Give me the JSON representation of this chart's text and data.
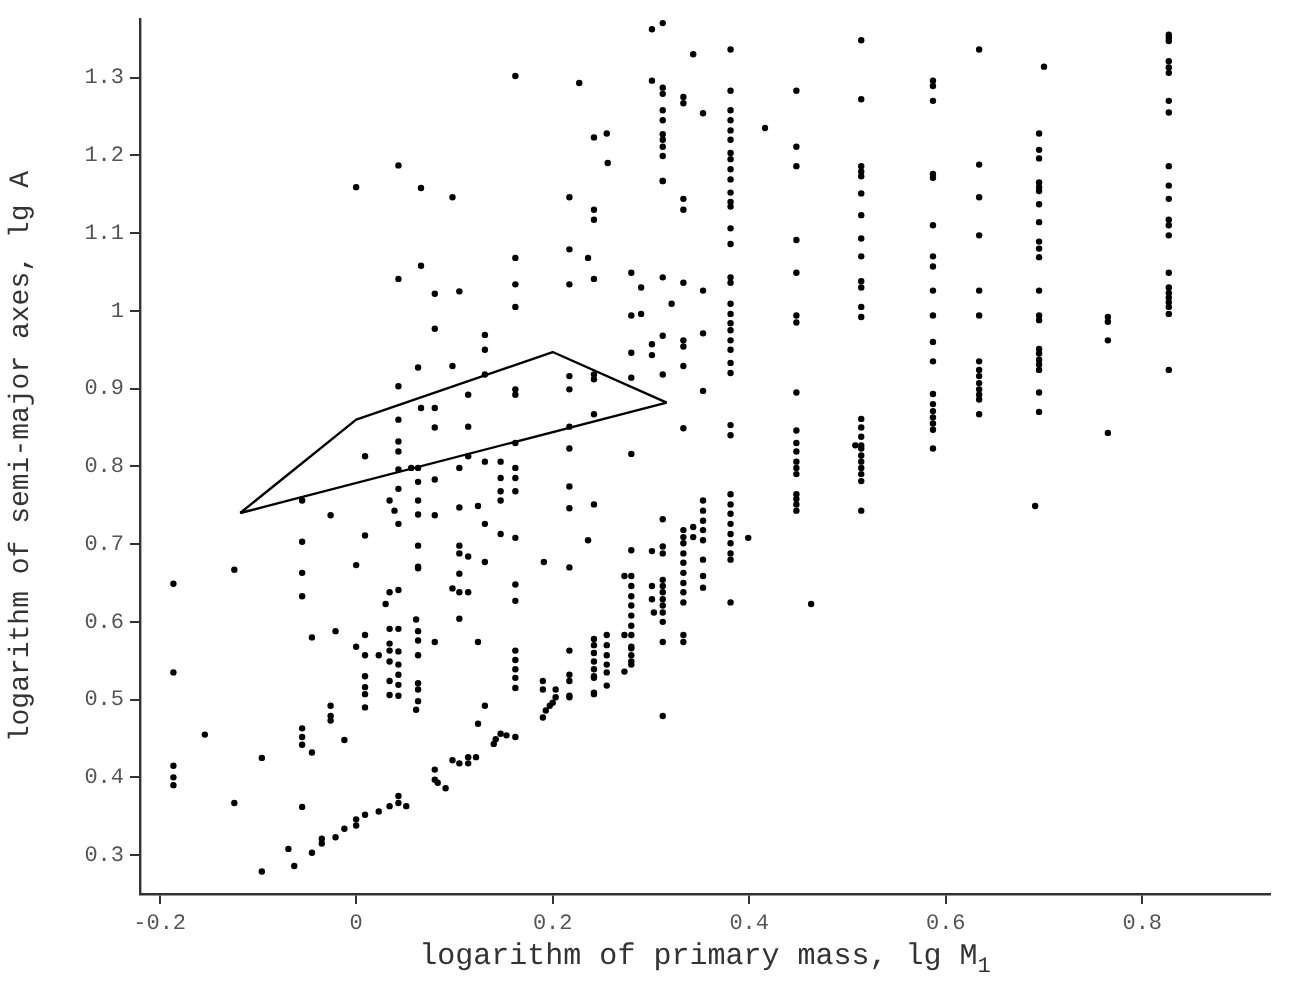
{
  "chart_data": {
    "type": "scatter",
    "xlabel": "logarithm of primary mass, lg M$_{1}$",
    "ylabel": "logarithm of semi-major axes, lg A",
    "xlim": [
      -0.22,
      0.93
    ],
    "ylim": [
      0.25,
      1.375
    ],
    "xticks": [
      -0.2,
      0,
      0.2,
      0.4,
      0.6,
      0.8
    ],
    "yticks": [
      0.3,
      0.4,
      0.5,
      0.6,
      0.7,
      0.8,
      0.9,
      1,
      1.1,
      1.2,
      1.3
    ],
    "grid": false,
    "legend": false,
    "marker": "circle",
    "series": [
      {
        "color": "#000000",
        "x": [
          -0.186,
          -0.186,
          -0.186,
          -0.186,
          -0.186,
          -0.154,
          -0.124,
          -0.124,
          -0.096,
          -0.096,
          -0.069,
          -0.063,
          -0.055,
          -0.055,
          -0.055,
          -0.055,
          -0.055,
          -0.055,
          -0.055,
          -0.055,
          -0.045,
          -0.045,
          -0.045,
          -0.035,
          -0.035,
          -0.026,
          -0.026,
          -0.026,
          -0.026,
          -0.021,
          -0.021,
          -0.012,
          -0.012,
          0,
          0,
          0,
          0,
          0,
          0.009,
          0.009,
          0.009,
          0.009,
          0.009,
          0.009,
          0.009,
          0.009,
          0.009,
          0.023,
          0.023,
          0.03,
          0.034,
          0.034,
          0.034,
          0.034,
          0.034,
          0.034,
          0.034,
          0.034,
          0.034,
          0.039,
          0.043,
          0.043,
          0.043,
          0.043,
          0.043,
          0.043,
          0.043,
          0.043,
          0.043,
          0.043,
          0.043,
          0.043,
          0.043,
          0.043,
          0.043,
          0.043,
          0.043,
          0.043,
          0.051,
          0.056,
          0.061,
          0.061,
          0.063,
          0.066,
          0.066,
          0.063,
          0.063,
          0.063,
          0.063,
          0.063,
          0.063,
          0.063,
          0.063,
          0.063,
          0.063,
          0.063,
          0.063,
          0.063,
          0.066,
          0.08,
          0.08,
          0.08,
          0.08,
          0.08,
          0.08,
          0.08,
          0.08,
          0.08,
          0.083,
          0.091,
          0.098,
          0.098,
          0.098,
          0.098,
          0.105,
          0.105,
          0.105,
          0.105,
          0.105,
          0.105,
          0.105,
          0.105,
          0.105,
          0.114,
          0.114,
          0.114,
          0.114,
          0.114,
          0.114,
          0.114,
          0.122,
          0.124,
          0.124,
          0.124,
          0.131,
          0.131,
          0.131,
          0.131,
          0.131,
          0.131,
          0.131,
          0.14,
          0.142,
          0.147,
          0.153,
          0.162,
          0.147,
          0.147,
          0.147,
          0.147,
          0.147,
          0.162,
          0.162,
          0.162,
          0.162,
          0.162,
          0.162,
          0.162,
          0.162,
          0.162,
          0.162,
          0.162,
          0.162,
          0.162,
          0.162,
          0.162,
          0.162,
          0.162,
          0.162,
          0.191,
          0.19,
          0.19,
          0.19,
          0.193,
          0.197,
          0.2,
          0.203,
          0.203,
          0.217,
          0.217,
          0.217,
          0.217,
          0.217,
          0.217,
          0.217,
          0.217,
          0.217,
          0.217,
          0.217,
          0.217,
          0.217,
          0.217,
          0.217,
          0.227,
          0.242,
          0.242,
          0.242,
          0.242,
          0.242,
          0.242,
          0.242,
          0.242,
          0.242,
          0.242,
          0.242,
          0.242,
          0.242,
          0.242,
          0.242,
          0.242,
          0.242,
          0.236,
          0.236,
          0.255,
          0.255,
          0.255,
          0.255,
          0.255,
          0.255,
          0.255,
          0.256,
          0.28,
          0.28,
          0.28,
          0.28,
          0.28,
          0.28,
          0.28,
          0.28,
          0.28,
          0.28,
          0.28,
          0.28,
          0.28,
          0.28,
          0.28,
          0.28,
          0.28,
          0.28,
          0.273,
          0.273,
          0.273,
          0.29,
          0.29,
          0.301,
          0.301,
          0.301,
          0.301,
          0.301,
          0.303,
          0.301,
          0.301,
          0.312,
          0.312,
          0.312,
          0.312,
          0.312,
          0.312,
          0.312,
          0.312,
          0.312,
          0.312,
          0.312,
          0.321,
          0.312,
          0.312,
          0.312,
          0.312,
          0.312,
          0.312,
          0.312,
          0.312,
          0.312,
          0.312,
          0.312,
          0.312,
          0.312,
          0.312,
          0.312,
          0.333,
          0.333,
          0.333,
          0.333,
          0.333,
          0.333,
          0.333,
          0.333,
          0.333,
          0.333,
          0.333,
          0.333,
          0.333,
          0.333,
          0.333,
          0.333,
          0.333,
          0.333,
          0.333,
          0.333,
          0.343,
          0.343,
          0.343,
          0.353,
          0.353,
          0.353,
          0.353,
          0.353,
          0.353,
          0.353,
          0.353,
          0.353,
          0.353,
          0.353,
          0.353,
          0.381,
          0.381,
          0.381,
          0.381,
          0.381,
          0.381,
          0.381,
          0.381,
          0.381,
          0.381,
          0.381,
          0.381,
          0.381,
          0.381,
          0.381,
          0.381,
          0.381,
          0.381,
          0.381,
          0.381,
          0.381,
          0.381,
          0.381,
          0.381,
          0.381,
          0.381,
          0.381,
          0.381,
          0.381,
          0.381,
          0.381,
          0.381,
          0.381,
          0.381,
          0.381,
          0.381,
          0.399,
          0.416,
          0.448,
          0.448,
          0.448,
          0.448,
          0.448,
          0.448,
          0.448,
          0.448,
          0.448,
          0.448,
          0.448,
          0.448,
          0.448,
          0.448,
          0.448,
          0.448,
          0.448,
          0.448,
          0.463,
          0.514,
          0.514,
          0.514,
          0.514,
          0.514,
          0.514,
          0.514,
          0.514,
          0.514,
          0.514,
          0.514,
          0.514,
          0.514,
          0.514,
          0.514,
          0.514,
          0.514,
          0.514,
          0.514,
          0.514,
          0.514,
          0.514,
          0.514,
          0.514,
          0.508,
          0.587,
          0.587,
          0.587,
          0.587,
          0.587,
          0.587,
          0.587,
          0.587,
          0.587,
          0.587,
          0.587,
          0.587,
          0.587,
          0.587,
          0.587,
          0.587,
          0.587,
          0.587,
          0.587,
          0.634,
          0.634,
          0.634,
          0.634,
          0.634,
          0.634,
          0.634,
          0.634,
          0.634,
          0.634,
          0.634,
          0.634,
          0.634,
          0.634,
          0.7,
          0.695,
          0.695,
          0.695,
          0.695,
          0.695,
          0.695,
          0.695,
          0.695,
          0.695,
          0.695,
          0.695,
          0.695,
          0.695,
          0.695,
          0.695,
          0.695,
          0.695,
          0.695,
          0.695,
          0.695,
          0.695,
          0.691,
          0.765,
          0.765,
          0.765,
          0.765,
          0.827,
          0.827,
          0.827,
          0.827,
          0.827,
          0.827,
          0.827,
          0.827,
          0.827,
          0.827,
          0.827,
          0.827,
          0.827,
          0.827,
          0.827,
          0.827,
          0.827,
          0.827,
          0.827,
          0.827,
          0.827,
          0.827
        ],
        "values": [
          0.649,
          0.535,
          0.415,
          0.4,
          0.39,
          0.455,
          0.367,
          0.667,
          0.425,
          0.279,
          0.308,
          0.286,
          0.756,
          0.703,
          0.663,
          0.633,
          0.362,
          0.463,
          0.452,
          0.442,
          0.58,
          0.432,
          0.303,
          0.321,
          0.315,
          0.737,
          0.492,
          0.479,
          0.473,
          0.588,
          0.323,
          0.448,
          0.334,
          1.159,
          0.673,
          0.568,
          0.338,
          0.346,
          0.813,
          0.711,
          0.583,
          0.557,
          0.53,
          0.516,
          0.507,
          0.49,
          0.352,
          0.557,
          0.356,
          0.623,
          0.756,
          0.638,
          0.591,
          0.572,
          0.563,
          0.549,
          0.524,
          0.506,
          0.363,
          0.743,
          1.187,
          1.041,
          0.903,
          0.86,
          0.832,
          0.819,
          0.796,
          0.771,
          0.726,
          0.641,
          0.591,
          0.562,
          0.545,
          0.532,
          0.519,
          0.505,
          0.376,
          0.367,
          0.363,
          0.798,
          0.603,
          0.487,
          0.927,
          1.158,
          1.058,
          0.798,
          0.78,
          0.756,
          0.738,
          0.698,
          0.671,
          0.669,
          0.588,
          0.576,
          0.557,
          0.521,
          0.513,
          0.498,
          0.875,
          1.022,
          0.977,
          0.875,
          0.85,
          0.783,
          0.737,
          0.574,
          0.41,
          0.397,
          0.393,
          0.386,
          1.146,
          0.929,
          0.643,
          0.422,
          1.025,
          0.798,
          0.747,
          0.698,
          0.688,
          0.662,
          0.638,
          0.604,
          0.418,
          0.892,
          0.851,
          0.813,
          0.684,
          0.638,
          0.418,
          0.426,
          0.426,
          0.749,
          0.574,
          0.469,
          0.969,
          0.95,
          0.918,
          0.806,
          0.726,
          0.677,
          0.492,
          0.443,
          0.449,
          0.456,
          0.454,
          0.452,
          0.806,
          0.785,
          0.768,
          0.756,
          0.713,
          1.068,
          1.034,
          1.005,
          0.899,
          0.892,
          0.83,
          0.798,
          0.785,
          0.768,
          0.708,
          0.648,
          0.627,
          0.563,
          0.551,
          0.539,
          0.528,
          0.515,
          1.302,
          0.677,
          0.524,
          0.513,
          0.477,
          0.486,
          0.492,
          0.496,
          0.503,
          0.513,
          1.146,
          1.079,
          1.034,
          0.916,
          0.899,
          0.851,
          0.823,
          0.774,
          0.746,
          0.67,
          0.563,
          0.532,
          0.524,
          0.505,
          0.503,
          1.293,
          1.223,
          1.13,
          1.117,
          1.041,
          0.918,
          0.912,
          0.867,
          0.751,
          0.578,
          0.57,
          0.56,
          0.549,
          0.539,
          0.53,
          0.509,
          0.528,
          0.507,
          1.068,
          0.705,
          0.57,
          0.557,
          0.545,
          0.535,
          0.518,
          0.583,
          1.228,
          1.19,
          1.049,
          0.994,
          0.946,
          0.914,
          0.816,
          0.692,
          0.659,
          0.646,
          0.633,
          0.621,
          0.608,
          0.595,
          0.583,
          0.568,
          0.557,
          0.545,
          0.566,
          0.549,
          0.536,
          0.659,
          0.583,
          1.03,
          0.996,
          0.957,
          0.943,
          0.691,
          0.646,
          0.629,
          0.612,
          1.362,
          1.296,
          1.287,
          1.279,
          1.258,
          1.245,
          1.227,
          1.22,
          1.211,
          1.199,
          1.167,
          1.167,
          1.043,
          1.009,
          0.968,
          0.918,
          0.732,
          0.697,
          0.688,
          0.654,
          0.646,
          0.638,
          0.629,
          0.621,
          0.612,
          0.6,
          0.574,
          0.479,
          1.37,
          1.275,
          1.267,
          1.144,
          1.13,
          1.036,
          0.962,
          0.954,
          0.929,
          0.849,
          0.718,
          0.709,
          0.701,
          0.688,
          0.676,
          0.663,
          0.65,
          0.638,
          0.625,
          0.583,
          0.574,
          1.33,
          0.722,
          0.709,
          1.254,
          1.026,
          0.971,
          0.897,
          0.756,
          0.743,
          0.73,
          0.718,
          0.705,
          0.68,
          0.659,
          0.644,
          1.336,
          1.283,
          1.258,
          1.245,
          1.232,
          1.22,
          1.203,
          1.195,
          1.182,
          1.169,
          1.152,
          1.14,
          1.134,
          1.106,
          1.086,
          1.043,
          1.036,
          1.009,
          0.996,
          0.984,
          0.975,
          0.962,
          0.95,
          0.933,
          0.92,
          0.853,
          0.84,
          0.764,
          0.751,
          0.739,
          0.726,
          0.713,
          0.701,
          0.688,
          0.68,
          0.625,
          0.708,
          1.235,
          1.283,
          1.211,
          1.186,
          1.091,
          1.049,
          0.994,
          0.985,
          0.895,
          0.846,
          0.83,
          0.819,
          0.806,
          0.798,
          0.79,
          0.764,
          0.758,
          0.751,
          0.743,
          0.623,
          1.348,
          1.272,
          1.186,
          1.179,
          1.173,
          1.151,
          1.123,
          1.093,
          1.07,
          1.038,
          1.03,
          1.005,
          0.992,
          0.861,
          0.85,
          0.838,
          0.827,
          0.823,
          0.814,
          0.806,
          0.798,
          0.79,
          0.781,
          0.743,
          0.827,
          1.296,
          1.289,
          1.27,
          1.176,
          1.171,
          1.11,
          1.07,
          1.057,
          1.026,
          0.994,
          0.96,
          0.935,
          0.893,
          0.88,
          0.871,
          0.863,
          0.855,
          0.847,
          0.823,
          1.336,
          1.188,
          1.146,
          1.097,
          1.026,
          0.994,
          0.935,
          0.924,
          0.916,
          0.907,
          0.899,
          0.892,
          0.886,
          0.867,
          1.314,
          1.228,
          1.207,
          1.196,
          1.165,
          1.159,
          1.154,
          1.137,
          1.114,
          1.089,
          1.08,
          1.069,
          1.026,
          0.994,
          0.988,
          0.951,
          0.945,
          0.937,
          0.931,
          0.924,
          0.895,
          0.87,
          0.749,
          0.992,
          0.986,
          0.962,
          0.843,
          1.355,
          1.351,
          1.347,
          1.321,
          1.313,
          1.306,
          1.27,
          1.255,
          1.186,
          1.161,
          1.144,
          1.117,
          1.11,
          1.097,
          1.049,
          1.03,
          1.023,
          1.017,
          1.011,
          1.005,
          0.996,
          0.924
        ]
      },
      {
        "type": "line",
        "color": "#000000",
        "marker": "none",
        "line_style": "solid",
        "x": [
          -0.118,
          0,
          0.2,
          0.316
        ],
        "values": [
          0.74,
          0.86,
          0.947,
          0.882
        ]
      },
      {
        "type": "line",
        "color": "#000000",
        "marker": "none",
        "line_style": "solid",
        "x": [
          -0.118,
          0.316
        ],
        "values": [
          0.74,
          0.882
        ]
      }
    ]
  }
}
